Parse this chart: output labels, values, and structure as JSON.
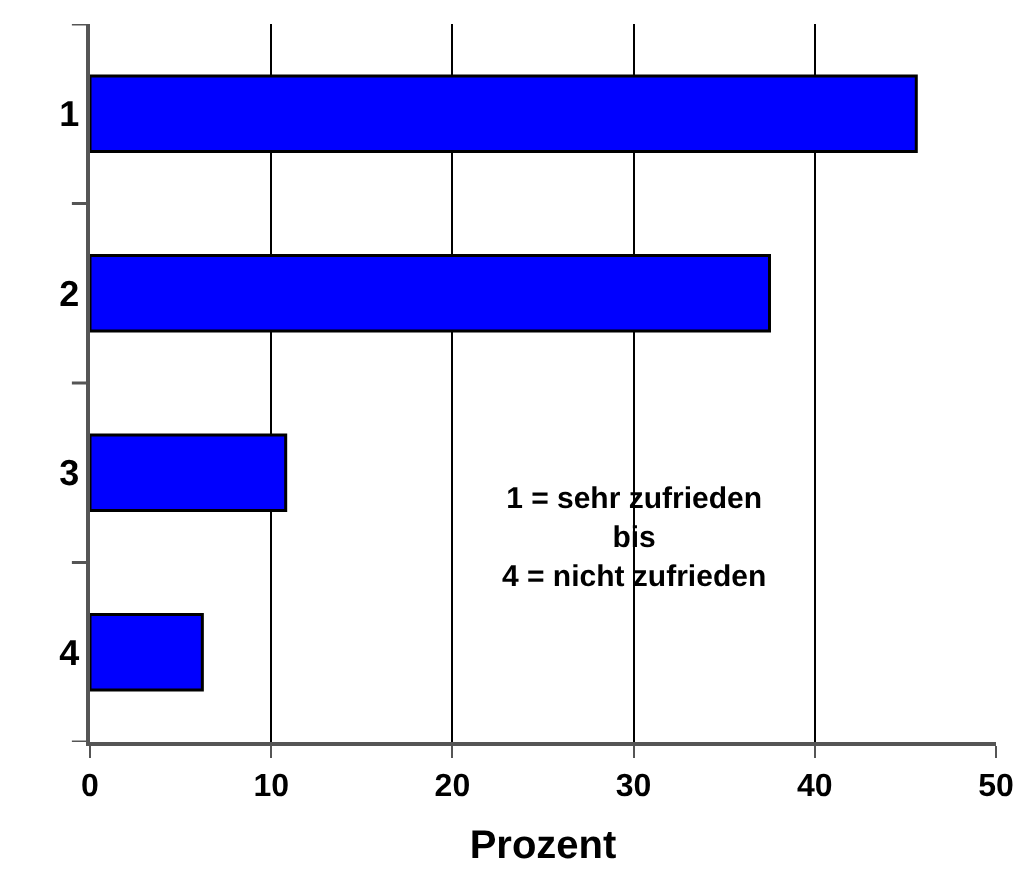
{
  "chart_data": {
    "type": "bar",
    "orientation": "horizontal",
    "categories": [
      "1",
      "2",
      "3",
      "4"
    ],
    "values": [
      45.6,
      37.5,
      10.8,
      6.2
    ],
    "color": "#0000ff",
    "xlabel": "Prozent",
    "xlim": [
      0,
      50
    ],
    "xticks": [
      0,
      10,
      20,
      30,
      40,
      50
    ],
    "grid": "x",
    "annotations": [
      "1 = sehr zufrieden\nbis\n4 = nicht zufrieden"
    ]
  }
}
